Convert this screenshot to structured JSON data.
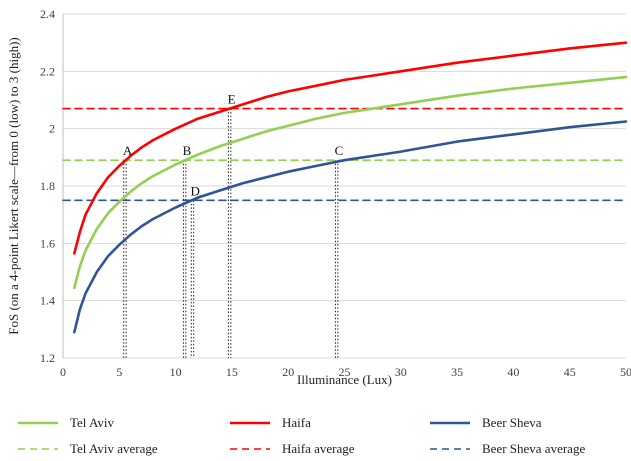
{
  "chart_data": {
    "type": "line",
    "title": "",
    "xlabel": "Illuminance (Lux)",
    "ylabel": "FoS (on a 4-point Likert scale—from 0 (low) to 3 (high))",
    "xlim": [
      0,
      50
    ],
    "ylim": [
      1.2,
      2.4
    ],
    "x_ticks": [
      "0",
      "5",
      "10",
      "15",
      "20",
      "25",
      "30",
      "35",
      "40",
      "45",
      "50"
    ],
    "y_ticks": [
      "1.2",
      "1.4",
      "1.6",
      "1.8",
      "2",
      "2.2",
      "2.4"
    ],
    "grid": "horizontal",
    "legend_position": "bottom",
    "series": [
      {
        "name": "Tel Aviv",
        "color": "#92d050",
        "style": "solid",
        "x": [
          1,
          1.5,
          2,
          3,
          4,
          5,
          6,
          7,
          8,
          10,
          12,
          14,
          16,
          18,
          20,
          22.5,
          25,
          27.5,
          30,
          35,
          40,
          45,
          50
        ],
        "y": [
          1.445,
          1.52,
          1.575,
          1.65,
          1.705,
          1.745,
          1.78,
          1.81,
          1.835,
          1.875,
          1.91,
          1.94,
          1.965,
          1.99,
          2.01,
          2.035,
          2.055,
          2.07,
          2.085,
          2.115,
          2.14,
          2.16,
          2.18
        ]
      },
      {
        "name": "Haifa",
        "color": "#ff0000",
        "style": "solid",
        "x": [
          1,
          1.5,
          2,
          3,
          4,
          5,
          6,
          7,
          8,
          10,
          12,
          14,
          16,
          18,
          20,
          22.5,
          25,
          27.5,
          30,
          35,
          40,
          45,
          50
        ],
        "y": [
          1.565,
          1.64,
          1.7,
          1.775,
          1.83,
          1.87,
          1.905,
          1.935,
          1.96,
          2.0,
          2.035,
          2.06,
          2.085,
          2.11,
          2.13,
          2.15,
          2.17,
          2.185,
          2.2,
          2.23,
          2.255,
          2.28,
          2.3
        ]
      },
      {
        "name": "Beer Sheva",
        "color": "#2f5597",
        "style": "solid",
        "x": [
          1,
          1.5,
          2,
          3,
          4,
          5,
          6,
          7,
          8,
          10,
          12,
          14,
          16,
          18,
          20,
          22.5,
          25,
          27.5,
          30,
          35,
          40,
          45,
          50
        ],
        "y": [
          1.29,
          1.37,
          1.425,
          1.5,
          1.555,
          1.595,
          1.63,
          1.66,
          1.685,
          1.725,
          1.76,
          1.785,
          1.81,
          1.83,
          1.85,
          1.87,
          1.89,
          1.905,
          1.92,
          1.955,
          1.98,
          2.005,
          2.025
        ]
      },
      {
        "name": "Tel Aviv average",
        "color": "#92d050",
        "style": "dashed",
        "x": [
          0,
          50
        ],
        "y": [
          1.89,
          1.89
        ]
      },
      {
        "name": "Haifa average",
        "color": "#ff0000",
        "style": "dashed",
        "x": [
          0,
          50
        ],
        "y": [
          2.07,
          2.07
        ]
      },
      {
        "name": "Beer Sheva average",
        "color": "#2f5597",
        "style": "dashed",
        "x": [
          0,
          50
        ],
        "y": [
          1.75,
          1.75
        ]
      }
    ],
    "annotations": [
      {
        "label": "A",
        "x": 5.5,
        "y": 1.89
      },
      {
        "label": "B",
        "x": 10.8,
        "y": 1.89
      },
      {
        "label": "C",
        "x": 24.3,
        "y": 1.89
      },
      {
        "label": "D",
        "x": 11.5,
        "y": 1.75
      },
      {
        "label": "E",
        "x": 14.8,
        "y": 2.07
      }
    ]
  }
}
